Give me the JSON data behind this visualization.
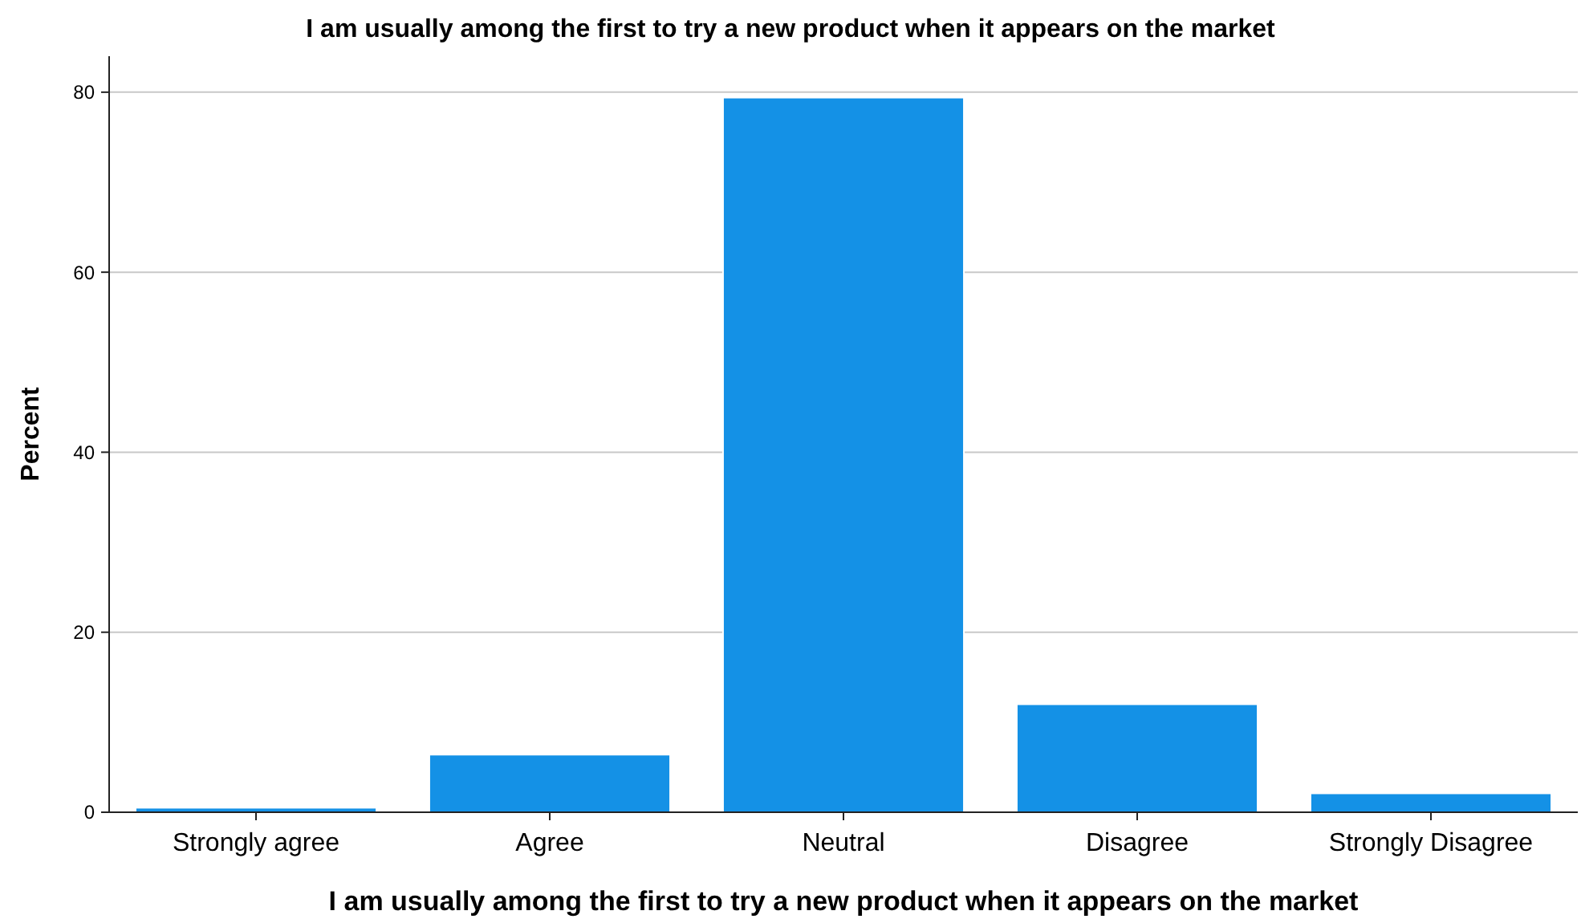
{
  "chart_data": {
    "type": "bar",
    "title": "I am usually among the first to try a new product when it appears on the market",
    "xlabel": "I am usually among the first to try a new product when it appears on the market",
    "ylabel": "Percent",
    "categories": [
      "Strongly agree",
      "Agree",
      "Neutral",
      "Disagree",
      "Strongly Disagree"
    ],
    "values": [
      0.5,
      6.4,
      79.4,
      12.0,
      2.1
    ],
    "color": "#1491e6",
    "ylim": [
      0,
      84
    ],
    "yticks": [
      0,
      20,
      40,
      60,
      80
    ],
    "grid": "y"
  }
}
